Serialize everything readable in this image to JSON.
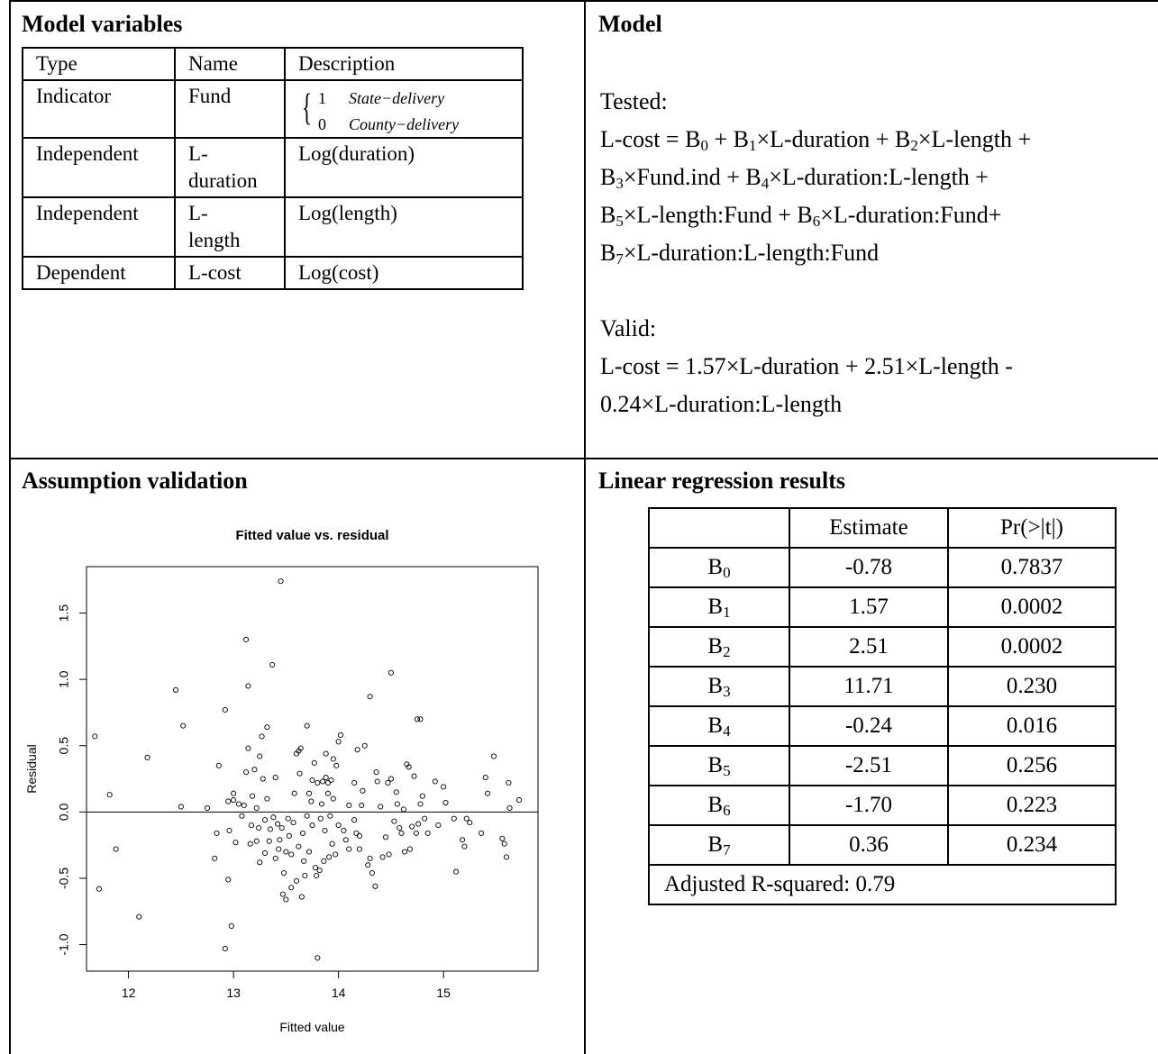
{
  "sections": {
    "variables_title": "Model variables",
    "model_title": "Model",
    "assumption_title": "Assumption validation",
    "regression_title": "Linear regression results"
  },
  "variables_table": {
    "headers": [
      "Type",
      "Name",
      "Description"
    ],
    "rows": [
      {
        "type": "Indicator",
        "name": "Fund",
        "desc": ""
      },
      {
        "type": "Independent",
        "name": "L-duration",
        "name_line1": "L-",
        "name_line2": "duration",
        "desc": "Log(duration)"
      },
      {
        "type": "Independent",
        "name": "L-length",
        "name_line1": "L-",
        "name_line2": "length",
        "desc": "Log(length)"
      },
      {
        "type": "Dependent",
        "name": "L-cost",
        "desc": "Log(cost)"
      }
    ],
    "fund_values": [
      {
        "value": "1",
        "label": "State−delivery"
      },
      {
        "value": "0",
        "label": "County−delivery"
      }
    ]
  },
  "model": {
    "tested_label": "Tested:",
    "tested_lines": [
      [
        "L-cost = B",
        "0",
        " + B",
        "1",
        "×L-duration + B",
        "2",
        "×L-length +"
      ],
      [
        "B",
        "3",
        "×Fund.ind + B",
        "4",
        "×L-duration:L-length +"
      ],
      [
        "B",
        "5",
        "×L-length:Fund + B",
        "6",
        "×L-duration:Fund+"
      ],
      [
        "B",
        "7",
        "×L-duration:L-length:Fund"
      ]
    ],
    "valid_label": "Valid:",
    "valid_lines": [
      "L-cost = 1.57×L-duration + 2.51×L-length -",
      "0.24×L-duration:L-length"
    ]
  },
  "regression_table": {
    "headers": [
      "",
      "Estimate",
      "Pr(>|t|)"
    ],
    "rows": [
      {
        "coef": "B",
        "sub": "0",
        "estimate": "-0.78",
        "p": "0.7837"
      },
      {
        "coef": "B",
        "sub": "1",
        "estimate": "1.57",
        "p": "0.0002"
      },
      {
        "coef": "B",
        "sub": "2",
        "estimate": "2.51",
        "p": "0.0002"
      },
      {
        "coef": "B",
        "sub": "3",
        "estimate": "11.71",
        "p": "0.230"
      },
      {
        "coef": "B",
        "sub": "4",
        "estimate": "-0.24",
        "p": "0.016"
      },
      {
        "coef": "B",
        "sub": "5",
        "estimate": "-2.51",
        "p": "0.256"
      },
      {
        "coef": "B",
        "sub": "6",
        "estimate": "-1.70",
        "p": "0.223"
      },
      {
        "coef": "B",
        "sub": "7",
        "estimate": "0.36",
        "p": "0.234"
      }
    ],
    "footer": "Adjusted R-squared: 0.79"
  },
  "chart_data": {
    "type": "scatter",
    "title": "Fitted value vs. residual",
    "xlabel": "Fitted value",
    "ylabel": "Residual",
    "xlim": [
      11.6,
      15.9
    ],
    "ylim": [
      -1.2,
      1.85
    ],
    "xticks": [
      "12",
      "13",
      "14",
      "15"
    ],
    "yticks": [
      "-1.0",
      "-0.5",
      "0.0",
      "0.5",
      "1.0",
      "1.5"
    ],
    "xtick_values": [
      12,
      13,
      14,
      15
    ],
    "ytick_values": [
      -1.0,
      -0.5,
      0.0,
      0.5,
      1.0,
      1.5
    ],
    "reference_line_y": 0,
    "marker": "open-circle",
    "points": [
      [
        11.68,
        0.57
      ],
      [
        11.72,
        -0.58
      ],
      [
        11.82,
        0.13
      ],
      [
        11.88,
        -0.28
      ],
      [
        12.1,
        -0.79
      ],
      [
        12.18,
        0.41
      ],
      [
        12.45,
        0.92
      ],
      [
        12.5,
        0.04
      ],
      [
        12.52,
        0.65
      ],
      [
        12.75,
        0.03
      ],
      [
        12.82,
        -0.35
      ],
      [
        12.84,
        -0.16
      ],
      [
        12.86,
        0.35
      ],
      [
        12.92,
        0.77
      ],
      [
        12.92,
        -1.03
      ],
      [
        12.95,
        0.08
      ],
      [
        12.95,
        -0.51
      ],
      [
        12.96,
        -0.14
      ],
      [
        12.98,
        -0.86
      ],
      [
        13.0,
        0.09
      ],
      [
        13.0,
        0.14
      ],
      [
        13.02,
        -0.23
      ],
      [
        13.05,
        0.06
      ],
      [
        13.08,
        -0.03
      ],
      [
        13.1,
        0.05
      ],
      [
        13.12,
        0.3
      ],
      [
        13.12,
        1.3
      ],
      [
        13.14,
        0.48
      ],
      [
        13.14,
        0.95
      ],
      [
        13.16,
        -0.24
      ],
      [
        13.17,
        -0.1
      ],
      [
        13.18,
        0.12
      ],
      [
        13.2,
        0.32
      ],
      [
        13.22,
        0.03
      ],
      [
        13.22,
        -0.22
      ],
      [
        13.24,
        -0.12
      ],
      [
        13.25,
        0.42
      ],
      [
        13.25,
        -0.38
      ],
      [
        13.27,
        0.57
      ],
      [
        13.28,
        0.25
      ],
      [
        13.3,
        -0.06
      ],
      [
        13.3,
        -0.31
      ],
      [
        13.32,
        0.1
      ],
      [
        13.32,
        0.64
      ],
      [
        13.34,
        -0.22
      ],
      [
        13.35,
        -0.13
      ],
      [
        13.37,
        1.11
      ],
      [
        13.38,
        -0.04
      ],
      [
        13.4,
        -0.35
      ],
      [
        13.4,
        0.26
      ],
      [
        13.42,
        -0.09
      ],
      [
        13.43,
        -0.28
      ],
      [
        13.44,
        -0.21
      ],
      [
        13.45,
        1.74
      ],
      [
        13.46,
        -0.12
      ],
      [
        13.47,
        -0.62
      ],
      [
        13.48,
        -0.46
      ],
      [
        13.5,
        -0.3
      ],
      [
        13.5,
        -0.66
      ],
      [
        13.52,
        -0.05
      ],
      [
        13.53,
        -0.18
      ],
      [
        13.55,
        -0.32
      ],
      [
        13.55,
        -0.57
      ],
      [
        13.57,
        -0.08
      ],
      [
        13.58,
        0.14
      ],
      [
        13.6,
        -0.52
      ],
      [
        13.6,
        0.44
      ],
      [
        13.62,
        -0.26
      ],
      [
        13.62,
        0.46
      ],
      [
        13.63,
        0.29
      ],
      [
        13.64,
        0.48
      ],
      [
        13.65,
        -0.64
      ],
      [
        13.66,
        -0.16
      ],
      [
        13.67,
        -0.37
      ],
      [
        13.68,
        -0.48
      ],
      [
        13.7,
        0.65
      ],
      [
        13.7,
        -0.03
      ],
      [
        13.72,
        0.14
      ],
      [
        13.72,
        -0.3
      ],
      [
        13.74,
        0.08
      ],
      [
        13.75,
        0.24
      ],
      [
        13.75,
        -0.1
      ],
      [
        13.77,
        0.37
      ],
      [
        13.78,
        -0.42
      ],
      [
        13.79,
        -0.48
      ],
      [
        13.8,
        0.22
      ],
      [
        13.8,
        -1.1
      ],
      [
        13.82,
        -0.44
      ],
      [
        13.83,
        -0.05
      ],
      [
        13.84,
        0.06
      ],
      [
        13.85,
        0.23
      ],
      [
        13.86,
        -0.37
      ],
      [
        13.87,
        -0.14
      ],
      [
        13.88,
        0.44
      ],
      [
        13.88,
        0.26
      ],
      [
        13.9,
        0.22
      ],
      [
        13.9,
        0.14
      ],
      [
        13.91,
        -0.34
      ],
      [
        13.92,
        -0.03
      ],
      [
        13.93,
        0.24
      ],
      [
        13.94,
        -0.24
      ],
      [
        13.95,
        0.1
      ],
      [
        13.95,
        0.4
      ],
      [
        13.97,
        -0.32
      ],
      [
        13.98,
        0.35
      ],
      [
        14.0,
        -0.1
      ],
      [
        14.0,
        0.53
      ],
      [
        14.02,
        0.58
      ],
      [
        14.05,
        -0.14
      ],
      [
        14.07,
        -0.21
      ],
      [
        14.1,
        0.05
      ],
      [
        14.1,
        -0.28
      ],
      [
        14.15,
        0.22
      ],
      [
        14.15,
        -0.06
      ],
      [
        14.17,
        -0.16
      ],
      [
        14.18,
        0.47
      ],
      [
        14.2,
        -0.28
      ],
      [
        14.2,
        -0.18
      ],
      [
        14.22,
        0.05
      ],
      [
        14.23,
        0.16
      ],
      [
        14.25,
        0.5
      ],
      [
        14.28,
        -0.4
      ],
      [
        14.3,
        -0.35
      ],
      [
        14.3,
        0.87
      ],
      [
        14.32,
        -0.46
      ],
      [
        14.35,
        -0.56
      ],
      [
        14.36,
        0.3
      ],
      [
        14.37,
        0.23
      ],
      [
        14.4,
        0.04
      ],
      [
        14.42,
        -0.34
      ],
      [
        14.45,
        -0.19
      ],
      [
        14.47,
        0.22
      ],
      [
        14.48,
        -0.32
      ],
      [
        14.5,
        1.05
      ],
      [
        14.5,
        0.25
      ],
      [
        14.53,
        -0.07
      ],
      [
        14.55,
        0.15
      ],
      [
        14.56,
        0.06
      ],
      [
        14.58,
        -0.12
      ],
      [
        14.6,
        -0.16
      ],
      [
        14.62,
        0.02
      ],
      [
        14.63,
        -0.3
      ],
      [
        14.65,
        0.36
      ],
      [
        14.67,
        0.34
      ],
      [
        14.68,
        -0.28
      ],
      [
        14.7,
        -0.11
      ],
      [
        14.72,
        0.27
      ],
      [
        14.74,
        -0.16
      ],
      [
        14.75,
        0.7
      ],
      [
        14.76,
        -0.09
      ],
      [
        14.78,
        0.06
      ],
      [
        14.78,
        0.7
      ],
      [
        14.8,
        0.12
      ],
      [
        14.82,
        -0.05
      ],
      [
        14.85,
        -0.16
      ],
      [
        14.92,
        0.23
      ],
      [
        14.95,
        -0.1
      ],
      [
        15.0,
        0.19
      ],
      [
        15.02,
        0.07
      ],
      [
        15.1,
        -0.05
      ],
      [
        15.12,
        -0.45
      ],
      [
        15.18,
        -0.21
      ],
      [
        15.2,
        -0.26
      ],
      [
        15.22,
        -0.05
      ],
      [
        15.25,
        -0.08
      ],
      [
        15.36,
        -0.16
      ],
      [
        15.4,
        0.26
      ],
      [
        15.42,
        0.14
      ],
      [
        15.48,
        0.42
      ],
      [
        15.56,
        -0.2
      ],
      [
        15.58,
        -0.24
      ],
      [
        15.6,
        -0.34
      ],
      [
        15.62,
        0.22
      ],
      [
        15.63,
        0.03
      ],
      [
        15.72,
        0.09
      ]
    ]
  }
}
